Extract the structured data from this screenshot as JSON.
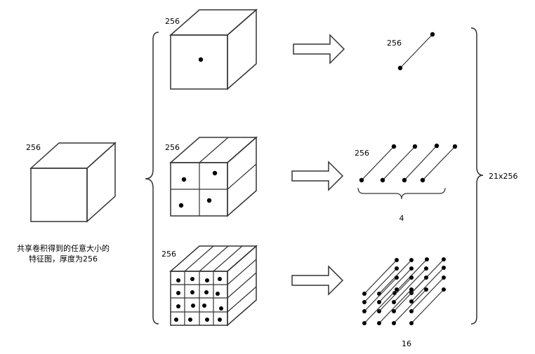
{
  "input_feature_map": {
    "depth_label": "256",
    "caption_line1": "共享卷积得到的任意大小的",
    "caption_line2": "特征图，厚度为256"
  },
  "pyramid_levels": [
    {
      "name": "level-1x1",
      "grid": 1,
      "depth_label": "256",
      "output_label": "256",
      "vector_count": ""
    },
    {
      "name": "level-2x2",
      "grid": 2,
      "depth_label": "256",
      "output_label": "256",
      "vector_count": "4"
    },
    {
      "name": "level-4x4",
      "grid": 4,
      "depth_label": "256",
      "output_label": "",
      "vector_count": "16"
    }
  ],
  "output_total": "21x256"
}
